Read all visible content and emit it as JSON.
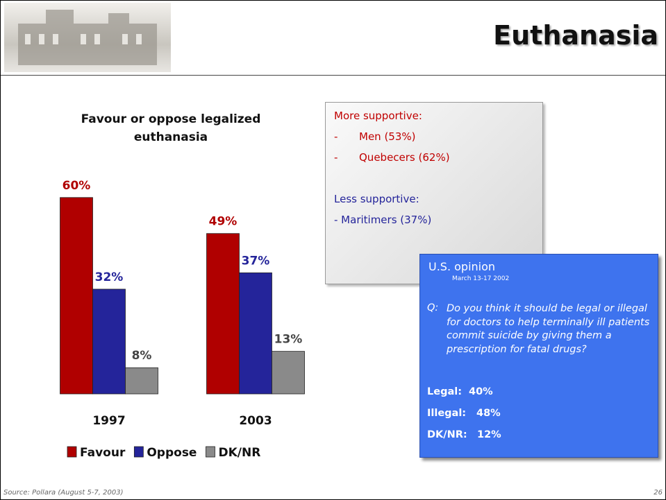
{
  "header": {
    "title": "Euthanasia"
  },
  "chart_data": {
    "type": "bar",
    "title": "Favour or oppose legalized euthanasia",
    "categories": [
      "1997",
      "2003"
    ],
    "series": [
      {
        "name": "Favour",
        "color": "#b00000",
        "values": [
          60,
          49
        ],
        "value_labels": [
          "60%",
          "49%"
        ]
      },
      {
        "name": "Oppose",
        "color": "#24249a",
        "values": [
          32,
          37
        ],
        "value_labels": [
          "32%",
          "37%"
        ]
      },
      {
        "name": "DK/NR",
        "color": "#8a8a8a",
        "values": [
          8,
          13
        ],
        "value_labels": [
          "8%",
          "13%"
        ]
      }
    ],
    "legend": "bottom"
  },
  "supportive_box": {
    "more_heading": "More supportive:",
    "more_items": [
      {
        "bullet": "-",
        "text": "Men (53%)"
      },
      {
        "bullet": "-",
        "text": "Quebecers (62%)"
      }
    ],
    "less_heading": "Less supportive:",
    "less_items": [
      "- Maritimers (37%)"
    ]
  },
  "us_box": {
    "title": "U.S. opinion",
    "date": "March 13-17 2002",
    "question_marker": "Q:",
    "question": "Do you think it should be legal or illegal for doctors to help terminally ill patients commit suicide by giving them a prescription for fatal drugs?",
    "results": [
      {
        "label": "Legal:",
        "value": "40%"
      },
      {
        "label": "Illegal:",
        "value": "48%"
      },
      {
        "label": "DK/NR:",
        "value": "12%"
      }
    ]
  },
  "footer": {
    "source": "Source: Pollara (August 5-7, 2003)",
    "page": "26"
  }
}
